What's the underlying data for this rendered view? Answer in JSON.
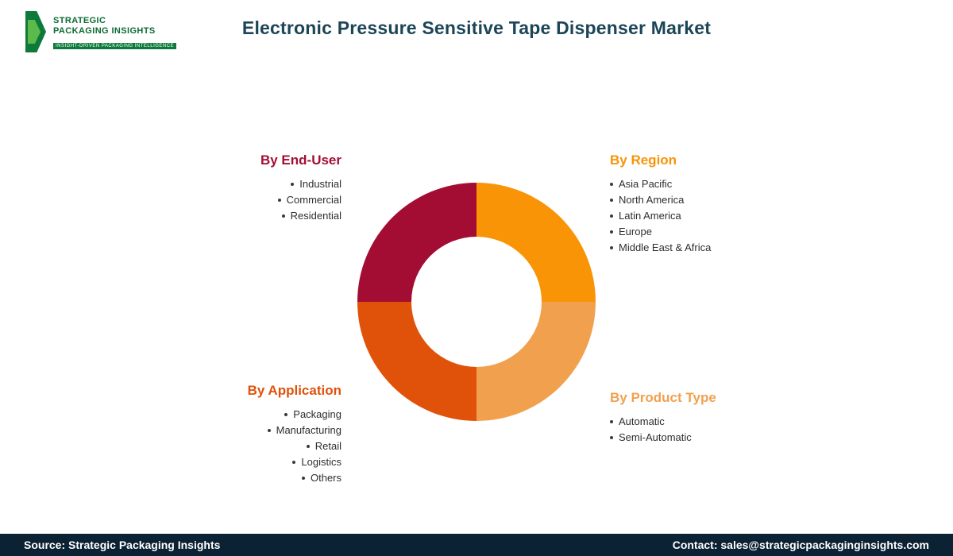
{
  "header": {
    "title": "Electronic Pressure Sensitive Tape Dispenser Market",
    "title_color": "#1C4557",
    "logo": {
      "line1": "STRATEGIC",
      "line2": "PACKAGING INSIGHTS",
      "tagline": "INSIGHT-DRIVEN PACKAGING INTELLIGENCE",
      "brand_green": "#0D7A3B"
    }
  },
  "chart_data": {
    "type": "pie",
    "subtype": "donut",
    "title": "Electronic Pressure Sensitive Tape Dispenser Market",
    "segments": [
      {
        "label": "By Region",
        "value": 25,
        "color": "#F89406"
      },
      {
        "label": "By Product Type",
        "value": 25,
        "color": "#F1A14E"
      },
      {
        "label": "By Application",
        "value": 25,
        "color": "#E0520A"
      },
      {
        "label": "By End-User",
        "value": 25,
        "color": "#A30D33"
      }
    ]
  },
  "groups": {
    "end_user": {
      "heading": "By End-User",
      "color": "#A30D33",
      "items": [
        "Industrial",
        "Commercial",
        "Residential"
      ]
    },
    "region": {
      "heading": "By Region",
      "color": "#F89406",
      "items": [
        "Asia Pacific",
        "North America",
        "Latin America",
        "Europe",
        "Middle East & Africa"
      ]
    },
    "application": {
      "heading": "By Application",
      "color": "#E0520A",
      "items": [
        "Packaging",
        "Manufacturing",
        "Retail",
        "Logistics",
        "Others"
      ]
    },
    "product_type": {
      "heading": "By Product Type",
      "color": "#F1A14E",
      "items": [
        "Automatic",
        "Semi-Automatic"
      ]
    }
  },
  "footer": {
    "source": "Source: Strategic Packaging Insights",
    "contact": "Contact: sales@strategicpackaginginsights.com",
    "background": "#0B2134"
  }
}
